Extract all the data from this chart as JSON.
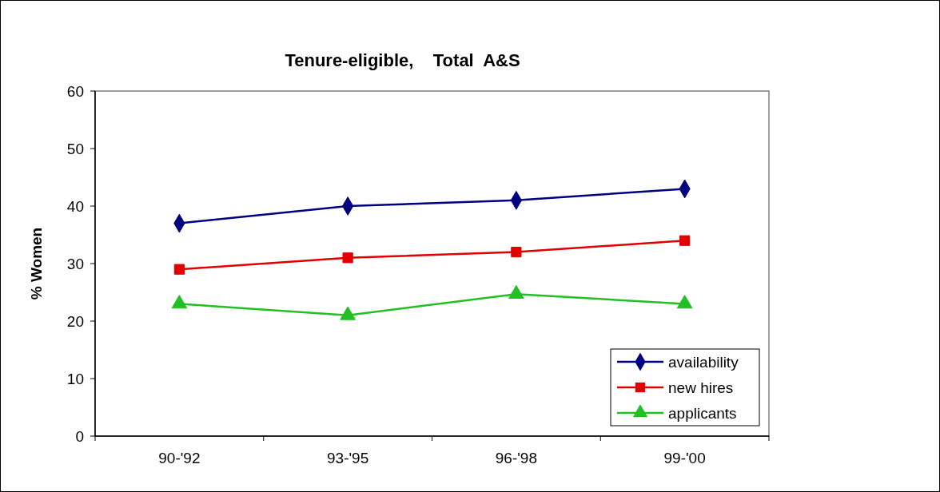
{
  "chart_data": {
    "type": "line",
    "title": "Tenure-eligible,    Total  A&S",
    "ylabel": "% Women",
    "categories": [
      "90-'92",
      "93-'95",
      "96-'98",
      "99-'00"
    ],
    "series": [
      {
        "name": "availability",
        "color": "#000080",
        "marker": "diamond",
        "values": [
          37,
          40,
          41,
          43
        ]
      },
      {
        "name": "new hires",
        "color": "#e00000",
        "marker": "square",
        "values": [
          29,
          31,
          32,
          34
        ]
      },
      {
        "name": "applicants",
        "color": "#22c022",
        "marker": "triangle",
        "values": [
          23,
          21,
          24.7,
          23
        ]
      }
    ],
    "ylim": [
      0,
      60
    ],
    "yticks": [
      0,
      10,
      20,
      30,
      40,
      50,
      60
    ],
    "grid": false,
    "legend": "bottom right"
  }
}
